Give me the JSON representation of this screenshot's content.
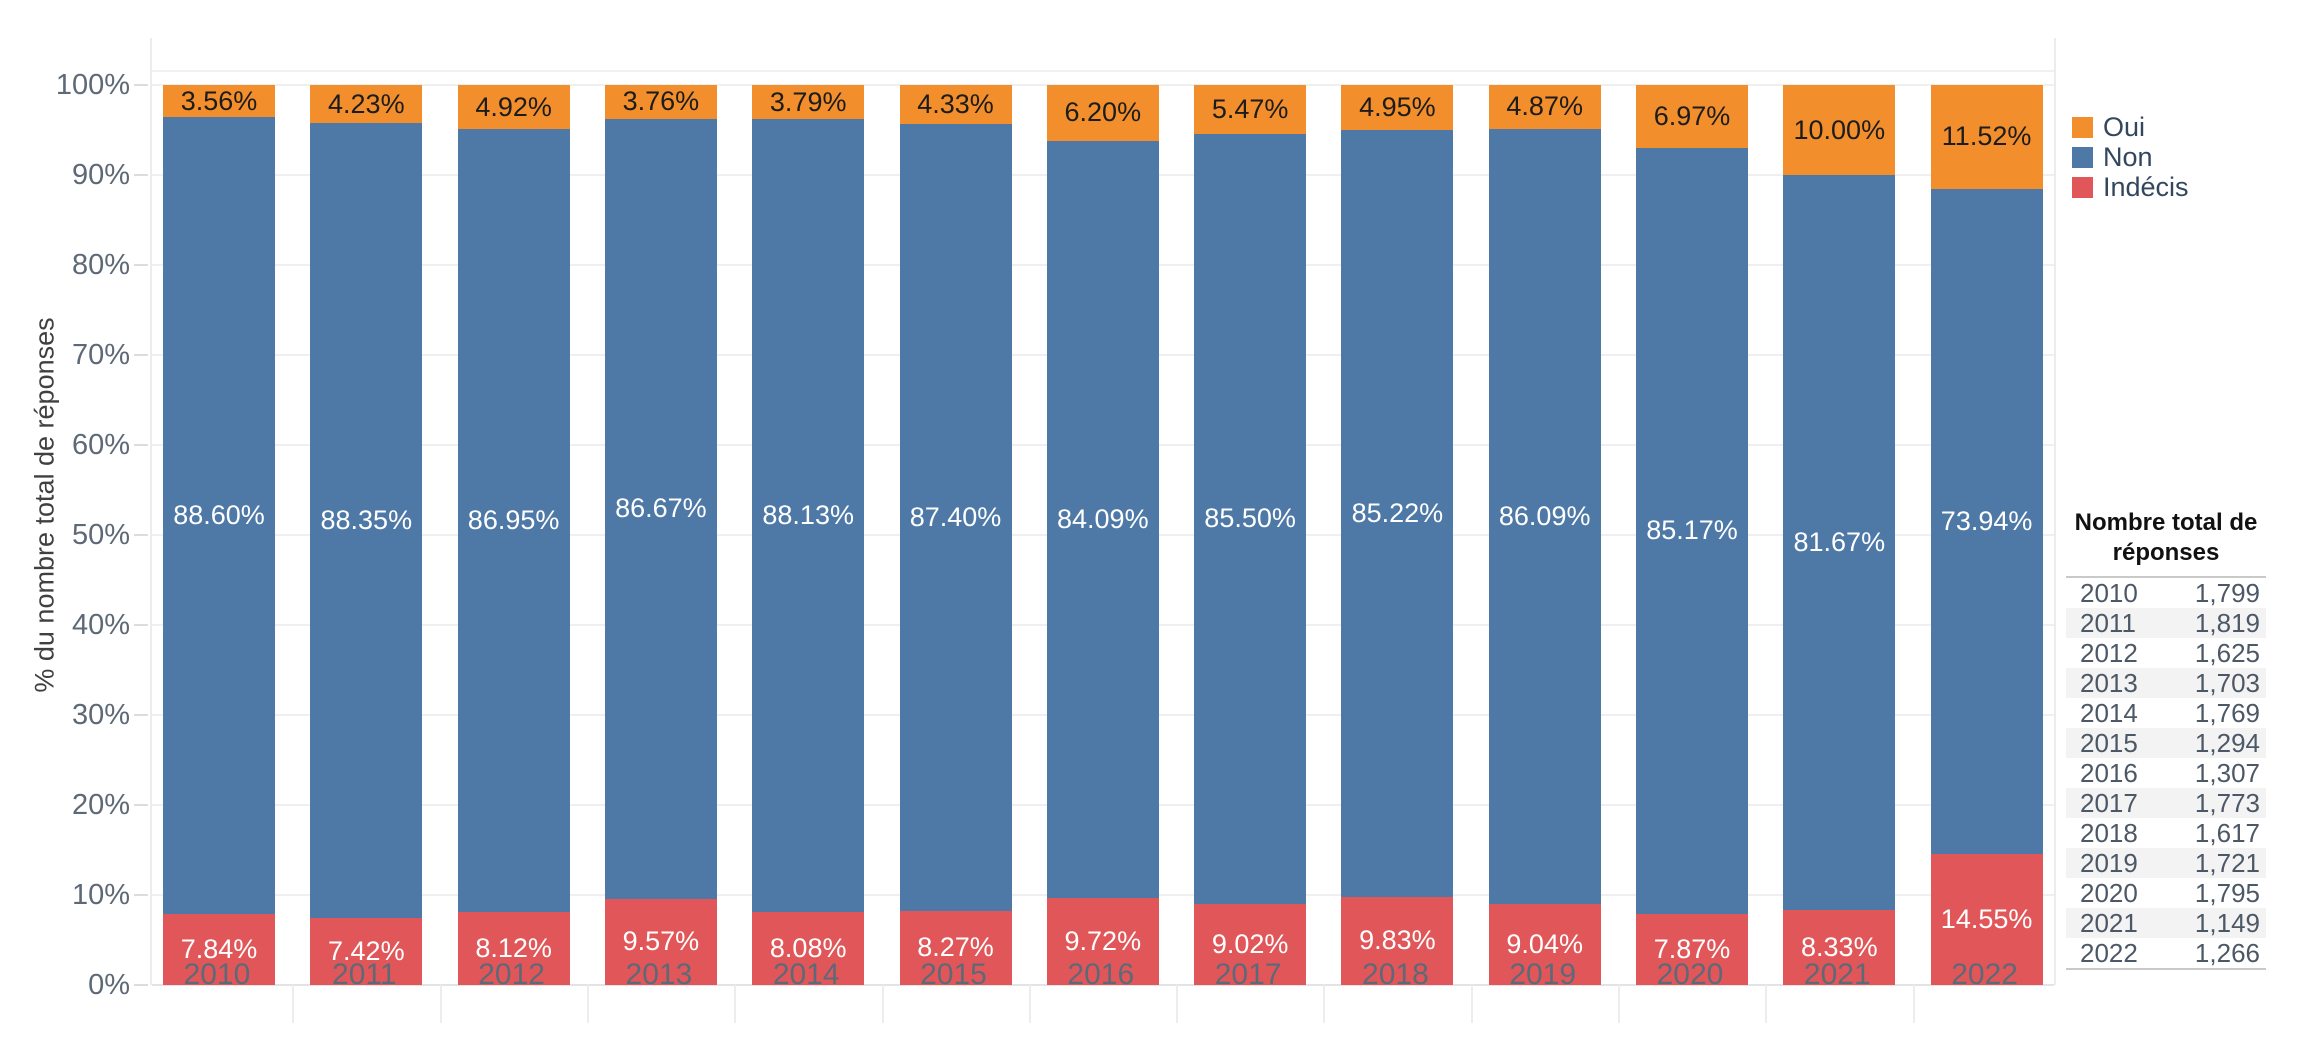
{
  "chart_data": {
    "type": "bar",
    "stacked": true,
    "orientation": "vertical",
    "ylabel": "% du nombre total de réponses",
    "xlabel": "",
    "ylim": [
      0,
      100
    ],
    "ytick_values": [
      0,
      10,
      20,
      30,
      40,
      50,
      60,
      70,
      80,
      90,
      100
    ],
    "ytick_suffix": "%",
    "grid": "horizontal",
    "legend_position": "right",
    "categories": [
      "2010",
      "2011",
      "2012",
      "2013",
      "2014",
      "2015",
      "2016",
      "2017",
      "2018",
      "2019",
      "2020",
      "2021",
      "2022"
    ],
    "series": [
      {
        "name": "Oui",
        "color": "#F28E2B",
        "label_color": "#1c1c1c",
        "values": [
          3.56,
          4.23,
          4.92,
          3.76,
          3.79,
          4.33,
          6.2,
          5.47,
          4.95,
          4.87,
          6.97,
          10.0,
          11.52
        ]
      },
      {
        "name": "Non",
        "color": "#4E79A7",
        "label_color": "#ffffff",
        "values": [
          88.6,
          88.35,
          86.95,
          86.67,
          88.13,
          87.4,
          84.09,
          85.5,
          85.22,
          86.09,
          85.17,
          81.67,
          73.94
        ]
      },
      {
        "name": "Indécis",
        "color": "#E15759",
        "label_color": "#ffffff",
        "values": [
          7.84,
          7.42,
          8.12,
          9.57,
          8.08,
          8.27,
          9.72,
          9.02,
          9.83,
          9.04,
          7.87,
          8.33,
          14.55
        ]
      }
    ],
    "value_label_format": "0.00%"
  },
  "legend": {
    "items": [
      {
        "label": "Oui",
        "color": "#F28E2B"
      },
      {
        "label": "Non",
        "color": "#4E79A7"
      },
      {
        "label": "Indécis",
        "color": "#E15759"
      }
    ]
  },
  "side_table": {
    "header": "Nombre total de réponses",
    "rows": [
      {
        "year": "2010",
        "value": "1,799"
      },
      {
        "year": "2011",
        "value": "1,819"
      },
      {
        "year": "2012",
        "value": "1,625"
      },
      {
        "year": "2013",
        "value": "1,703"
      },
      {
        "year": "2014",
        "value": "1,769"
      },
      {
        "year": "2015",
        "value": "1,294"
      },
      {
        "year": "2016",
        "value": "1,307"
      },
      {
        "year": "2017",
        "value": "1,773"
      },
      {
        "year": "2018",
        "value": "1,617"
      },
      {
        "year": "2019",
        "value": "1,721"
      },
      {
        "year": "2020",
        "value": "1,795"
      },
      {
        "year": "2021",
        "value": "1,149"
      },
      {
        "year": "2022",
        "value": "1,266"
      }
    ]
  }
}
